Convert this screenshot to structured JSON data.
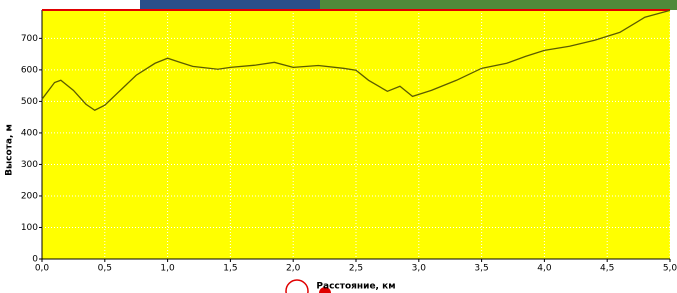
{
  "chart_data": {
    "type": "line",
    "x_label": "Расстояние, км",
    "y_label": "Высота, м",
    "x": [
      0,
      0.1,
      0.15,
      0.25,
      0.35,
      0.42,
      0.5,
      0.6,
      0.75,
      0.9,
      1.0,
      1.1,
      1.2,
      1.4,
      1.5,
      1.7,
      1.85,
      2.0,
      2.2,
      2.4,
      2.5,
      2.6,
      2.75,
      2.85,
      2.95,
      3.1,
      3.3,
      3.5,
      3.7,
      3.85,
      4.0,
      4.2,
      4.4,
      4.6,
      4.8,
      5.0
    ],
    "series": [
      {
        "color": "#5c5c00",
        "values": [
          507,
          560,
          567,
          535,
          491,
          472,
          488,
          526,
          583,
          621,
          637,
          624,
          611,
          602,
          608,
          615,
          624,
          608,
          614,
          605,
          599,
          567,
          532,
          548,
          516,
          535,
          567,
          605,
          621,
          643,
          662,
          675,
          694,
          719,
          767,
          789
        ]
      }
    ],
    "xlim": [
      0,
      5
    ],
    "ylim": [
      0,
      790
    ],
    "xticks": [
      {
        "value": 0,
        "label": "0,0"
      },
      {
        "value": 0.5,
        "label": "0,5"
      },
      {
        "value": 1,
        "label": "1,0"
      },
      {
        "value": 1.5,
        "label": "1,5"
      },
      {
        "value": 2,
        "label": "2,0"
      },
      {
        "value": 2.5,
        "label": "2,5"
      },
      {
        "value": 3,
        "label": "3,0"
      },
      {
        "value": 3.5,
        "label": "3,5"
      },
      {
        "value": 4,
        "label": "4,0"
      },
      {
        "value": 4.5,
        "label": "4,5"
      },
      {
        "value": 5,
        "label": "5,0"
      }
    ],
    "yticks": [
      0,
      100,
      200,
      300,
      400,
      500,
      600,
      700
    ],
    "grid": true,
    "plot_background": "#ffff00",
    "border_color": "#e00000"
  }
}
